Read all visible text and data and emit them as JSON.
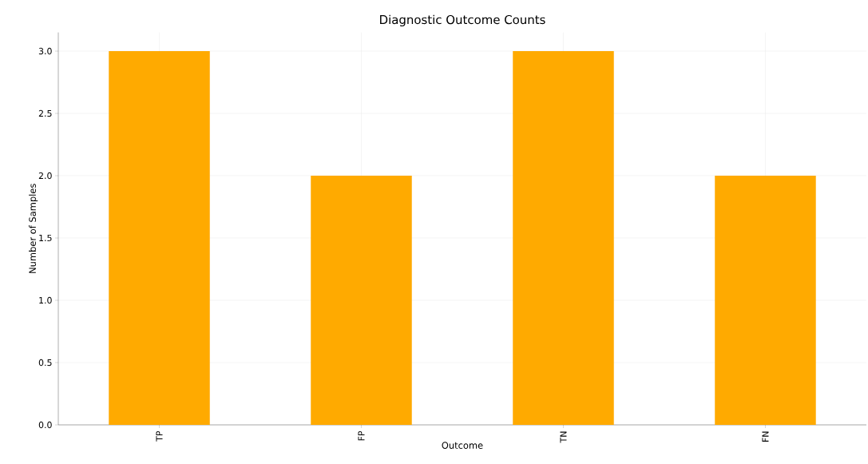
{
  "chart_data": {
    "type": "bar",
    "title": "Diagnostic Outcome Counts",
    "xlabel": "Outcome",
    "ylabel": "Number of Samples",
    "categories": [
      "TP",
      "FP",
      "TN",
      "FN"
    ],
    "values": [
      3,
      2,
      3,
      2
    ],
    "color": "#ffaa00",
    "ylim": [
      0,
      3.15
    ],
    "yticks": [
      {
        "value": 0,
        "label": "0.0"
      },
      {
        "value": 0.5,
        "label": "0.5"
      },
      {
        "value": 1,
        "label": "1.0"
      },
      {
        "value": 1.5,
        "label": "1.5"
      },
      {
        "value": 2,
        "label": "2.0"
      },
      {
        "value": 2.5,
        "label": "2.5"
      },
      {
        "value": 3,
        "label": "3.0"
      }
    ],
    "grid": true
  }
}
